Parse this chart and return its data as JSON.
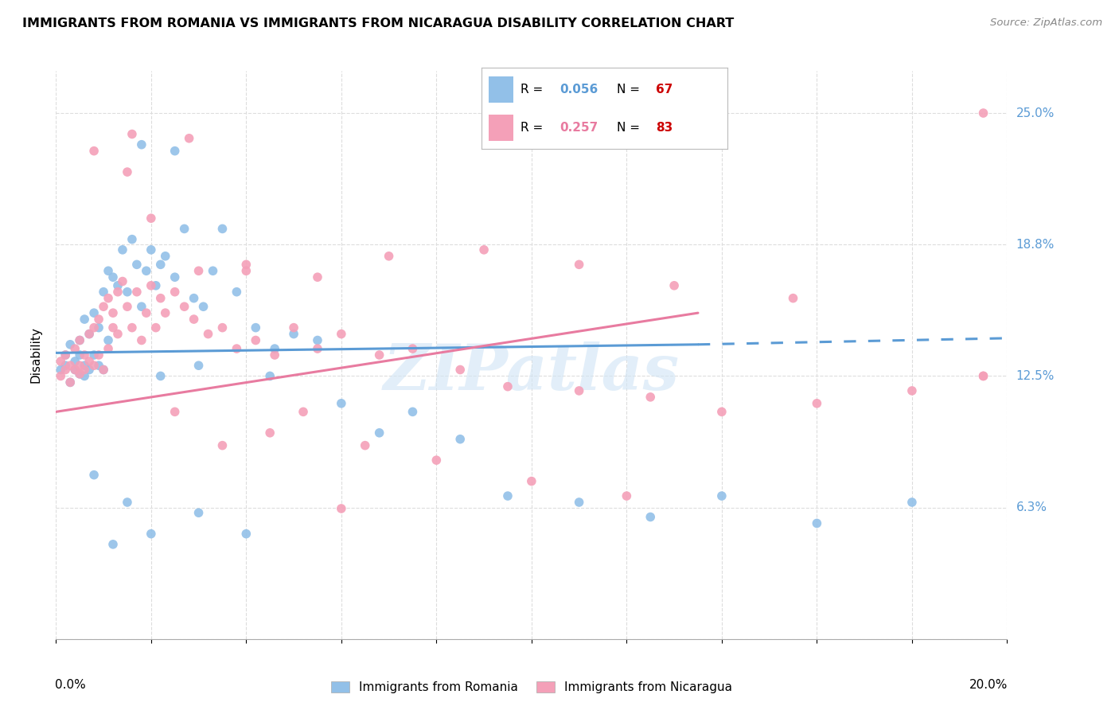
{
  "title": "IMMIGRANTS FROM ROMANIA VS IMMIGRANTS FROM NICARAGUA DISABILITY CORRELATION CHART",
  "source": "Source: ZipAtlas.com",
  "ylabel": "Disability",
  "xlim": [
    0.0,
    0.2
  ],
  "ylim": [
    0.0,
    0.27
  ],
  "romania_color": "#92C0E8",
  "nicaragua_color": "#F4A0B8",
  "romania_line_color": "#5B9BD5",
  "nicaragua_line_color": "#E87BA0",
  "watermark": "ZIPatlas",
  "romania_R": "0.056",
  "romania_N": "67",
  "nicaragua_R": "0.257",
  "nicaragua_N": "83",
  "legend_val_color_blue": "#5B9BD5",
  "legend_val_color_red": "#CC0000",
  "ytick_vals": [
    0.0,
    0.0625,
    0.125,
    0.1875,
    0.25
  ],
  "ytick_labels": [
    "",
    "6.3%",
    "12.5%",
    "18.8%",
    "25.0%"
  ],
  "xtick_vals": [
    0.0,
    0.02,
    0.04,
    0.06,
    0.08,
    0.1,
    0.12,
    0.14,
    0.16,
    0.18,
    0.2
  ],
  "romania_x": [
    0.001,
    0.002,
    0.002,
    0.003,
    0.003,
    0.004,
    0.004,
    0.005,
    0.005,
    0.005,
    0.006,
    0.006,
    0.006,
    0.007,
    0.007,
    0.008,
    0.008,
    0.009,
    0.009,
    0.01,
    0.01,
    0.011,
    0.011,
    0.012,
    0.013,
    0.014,
    0.015,
    0.016,
    0.017,
    0.018,
    0.019,
    0.02,
    0.021,
    0.022,
    0.023,
    0.025,
    0.027,
    0.029,
    0.031,
    0.033,
    0.035,
    0.038,
    0.042,
    0.046,
    0.05,
    0.055,
    0.06,
    0.068,
    0.075,
    0.085,
    0.095,
    0.11,
    0.125,
    0.14,
    0.16,
    0.18,
    0.02,
    0.03,
    0.04,
    0.015,
    0.025,
    0.008,
    0.012,
    0.018,
    0.022,
    0.03,
    0.045
  ],
  "romania_y": [
    0.128,
    0.13,
    0.135,
    0.122,
    0.14,
    0.128,
    0.132,
    0.126,
    0.135,
    0.142,
    0.125,
    0.13,
    0.152,
    0.128,
    0.145,
    0.135,
    0.155,
    0.13,
    0.148,
    0.128,
    0.165,
    0.142,
    0.175,
    0.172,
    0.168,
    0.185,
    0.165,
    0.19,
    0.178,
    0.158,
    0.175,
    0.185,
    0.168,
    0.178,
    0.182,
    0.172,
    0.195,
    0.162,
    0.158,
    0.175,
    0.195,
    0.165,
    0.148,
    0.138,
    0.145,
    0.142,
    0.112,
    0.098,
    0.108,
    0.095,
    0.068,
    0.065,
    0.058,
    0.068,
    0.055,
    0.065,
    0.05,
    0.06,
    0.05,
    0.065,
    0.232,
    0.078,
    0.045,
    0.235,
    0.125,
    0.13,
    0.125
  ],
  "nicaragua_x": [
    0.001,
    0.001,
    0.002,
    0.002,
    0.003,
    0.003,
    0.004,
    0.004,
    0.005,
    0.005,
    0.005,
    0.006,
    0.006,
    0.007,
    0.007,
    0.008,
    0.008,
    0.009,
    0.009,
    0.01,
    0.01,
    0.011,
    0.011,
    0.012,
    0.012,
    0.013,
    0.013,
    0.014,
    0.015,
    0.016,
    0.017,
    0.018,
    0.019,
    0.02,
    0.021,
    0.022,
    0.023,
    0.025,
    0.027,
    0.029,
    0.032,
    0.035,
    0.038,
    0.042,
    0.046,
    0.05,
    0.055,
    0.06,
    0.068,
    0.075,
    0.085,
    0.095,
    0.11,
    0.125,
    0.14,
    0.16,
    0.18,
    0.195,
    0.015,
    0.02,
    0.03,
    0.04,
    0.055,
    0.07,
    0.09,
    0.11,
    0.13,
    0.155,
    0.025,
    0.035,
    0.045,
    0.065,
    0.08,
    0.1,
    0.12,
    0.06,
    0.008,
    0.016,
    0.028,
    0.04,
    0.052,
    0.195,
    0.195
  ],
  "nicaragua_y": [
    0.125,
    0.132,
    0.128,
    0.135,
    0.13,
    0.122,
    0.128,
    0.138,
    0.126,
    0.13,
    0.142,
    0.128,
    0.135,
    0.132,
    0.145,
    0.13,
    0.148,
    0.135,
    0.152,
    0.128,
    0.158,
    0.138,
    0.162,
    0.148,
    0.155,
    0.165,
    0.145,
    0.17,
    0.158,
    0.148,
    0.165,
    0.142,
    0.155,
    0.168,
    0.148,
    0.162,
    0.155,
    0.165,
    0.158,
    0.152,
    0.145,
    0.148,
    0.138,
    0.142,
    0.135,
    0.148,
    0.138,
    0.145,
    0.135,
    0.138,
    0.128,
    0.12,
    0.118,
    0.115,
    0.108,
    0.112,
    0.118,
    0.125,
    0.222,
    0.2,
    0.175,
    0.178,
    0.172,
    0.182,
    0.185,
    0.178,
    0.168,
    0.162,
    0.108,
    0.092,
    0.098,
    0.092,
    0.085,
    0.075,
    0.068,
    0.062,
    0.232,
    0.24,
    0.238,
    0.175,
    0.108,
    0.125,
    0.25
  ]
}
